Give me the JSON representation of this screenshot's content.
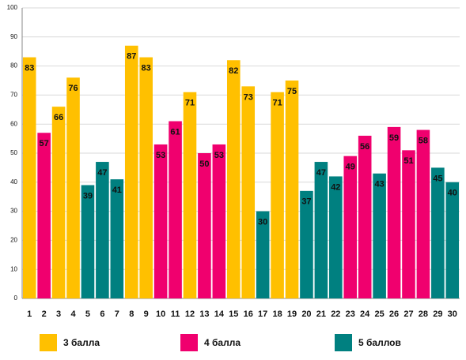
{
  "chart_data": {
    "type": "bar",
    "categories": [
      "1",
      "2",
      "3",
      "4",
      "5",
      "6",
      "7",
      "8",
      "9",
      "10",
      "11",
      "12",
      "13",
      "14",
      "15",
      "16",
      "17",
      "18",
      "19",
      "20",
      "21",
      "22",
      "23",
      "24",
      "25",
      "26",
      "27",
      "28",
      "29",
      "30"
    ],
    "series": [
      {
        "name": "3 балла",
        "color": "#ffc000",
        "values": [
          83,
          null,
          66,
          76,
          null,
          null,
          null,
          87,
          83,
          null,
          null,
          71,
          null,
          null,
          82,
          73,
          null,
          71,
          75,
          null,
          null,
          null,
          null,
          null,
          null,
          null,
          null,
          null,
          null,
          null
        ]
      },
      {
        "name": "4 балла",
        "color": "#f0006e",
        "values": [
          null,
          57,
          null,
          null,
          null,
          null,
          null,
          null,
          null,
          53,
          61,
          null,
          50,
          53,
          null,
          null,
          null,
          null,
          null,
          null,
          null,
          null,
          49,
          56,
          null,
          59,
          51,
          58,
          null,
          null
        ]
      },
      {
        "name": "5 баллов",
        "color": "#008080",
        "values": [
          null,
          null,
          null,
          null,
          39,
          47,
          41,
          null,
          null,
          null,
          null,
          null,
          null,
          null,
          null,
          null,
          30,
          null,
          null,
          37,
          47,
          42,
          null,
          null,
          43,
          null,
          null,
          null,
          45,
          40
        ]
      }
    ],
    "ylim": [
      0,
      100
    ],
    "yticks": [
      0,
      10,
      20,
      30,
      40,
      50,
      60,
      70,
      80,
      90,
      100
    ],
    "grid": true
  }
}
